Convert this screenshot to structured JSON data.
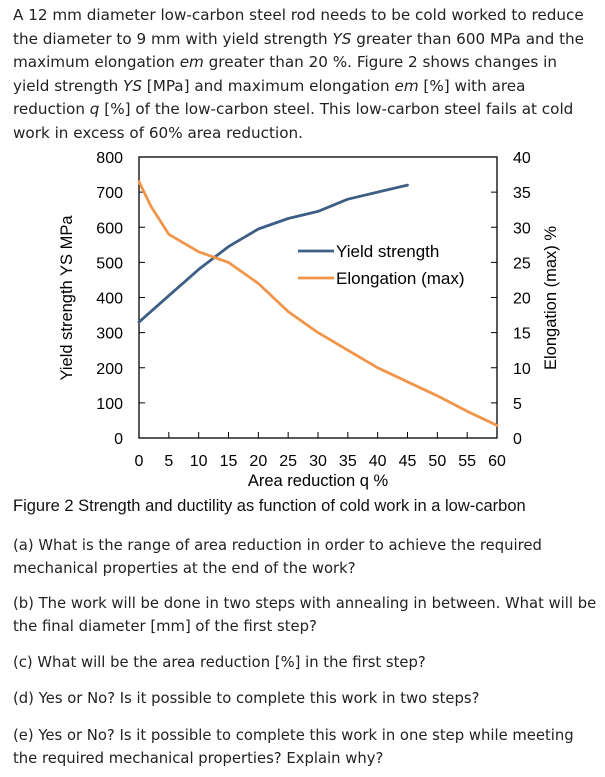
{
  "intro": {
    "p1": "A 12 mm diameter low-carbon steel rod needs to be cold worked to reduce the diameter to 9 mm with yield strength ",
    "ys1": "YS",
    "p2": " greater than 600 MPa and the maximum elongation ",
    "em1": "em",
    "p3": " greater than 20 %. Figure 2 shows changes in yield strength ",
    "ys2": "YS",
    "p4": " [MPa] and maximum elongation ",
    "em2": "em",
    "p5": " [%] with area reduction ",
    "q1": "q",
    "p6": " [%] of the low-carbon steel. This low-carbon steel fails at cold work in excess of 60% area reduction."
  },
  "chart_data": {
    "type": "line",
    "xlabel": "Area reduction q %",
    "ylabel_left": "Yield strength YS MPa",
    "ylabel_right": "Elongation (max) %",
    "xlim": [
      0,
      60
    ],
    "ylim_left": [
      0,
      800
    ],
    "ylim_right": [
      0,
      40
    ],
    "x_ticks": [
      "0",
      "5",
      "10",
      "15",
      "20",
      "25",
      "30",
      "35",
      "40",
      "45",
      "50",
      "55",
      "60"
    ],
    "y_left_ticks": [
      "0",
      "100",
      "200",
      "300",
      "400",
      "500",
      "600",
      "700",
      "800"
    ],
    "y_right_ticks": [
      "0",
      "5",
      "10",
      "15",
      "20",
      "25",
      "30",
      "35",
      "40"
    ],
    "series": [
      {
        "name": "Yield strength",
        "axis": "left",
        "color": "#3d5f85",
        "x": [
          0,
          5,
          10,
          15,
          20,
          25,
          30,
          35,
          40,
          45
        ],
        "values": [
          330,
          405,
          480,
          545,
          595,
          625,
          645,
          680,
          700,
          720
        ]
      },
      {
        "name": "Elongation (max)",
        "axis": "right",
        "color": "#f0954a",
        "x": [
          0,
          2,
          5,
          10,
          15,
          20,
          25,
          30,
          35,
          40,
          45,
          50,
          55,
          60
        ],
        "values": [
          36.5,
          33,
          29,
          26.5,
          25,
          22,
          18,
          15,
          12.5,
          10,
          8,
          6,
          3.8,
          1.8
        ]
      }
    ]
  },
  "caption": "Figure 2 Strength and ductility as function of cold work in a low-carbon",
  "questions": {
    "a": "(a) What is the range of area reduction in order to achieve the required mechanical properties at the end of the work?",
    "b": "(b) The work will be done in two steps with annealing in between. What will be the final diameter [mm] of the first step?",
    "c": "(c) What will be the area reduction [%] in the first step?",
    "d": "(d) Yes or No? Is it possible to complete this work in two steps?",
    "e": "(e) Yes or No? Is it possible to complete this work in one step while meeting the required mechanical properties? Explain why?"
  }
}
